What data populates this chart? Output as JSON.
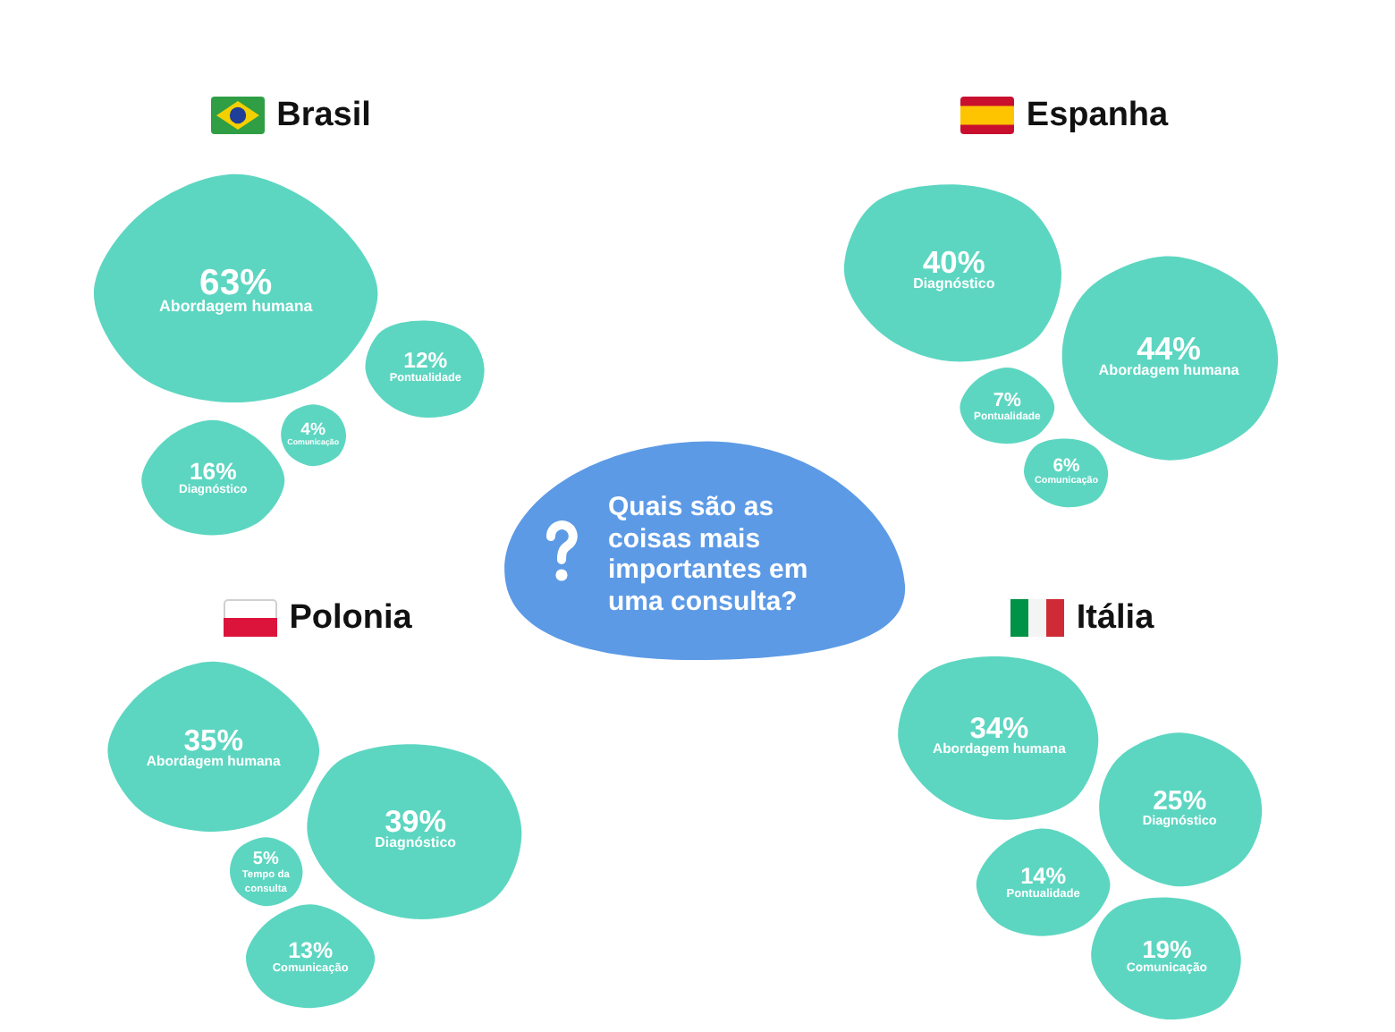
{
  "chart_data": [
    {
      "type": "other",
      "title": "Brasil",
      "categories": [
        "Abordagem humana",
        "Pontualidade",
        "Comunicação",
        "Diagnóstico"
      ],
      "values": [
        63,
        12,
        4,
        16
      ],
      "value_labels": [
        "63%",
        "12%",
        "4%",
        "16%"
      ],
      "color": "#5cd6c1"
    },
    {
      "type": "other",
      "title": "Espanha",
      "categories": [
        "Diagnóstico",
        "Abordagem humana",
        "Pontualidade",
        "Comunicação"
      ],
      "values": [
        40,
        44,
        7,
        6
      ],
      "value_labels": [
        "40%",
        "44%",
        "7%",
        "6%"
      ],
      "color": "#5cd6c1"
    },
    {
      "type": "other",
      "title": "Quais são as coisas mais importantes em uma consulta?"
    },
    {
      "type": "other",
      "title": "Polonia",
      "categories": [
        "Abordagem humana",
        "Diagnóstico",
        "Tempo da consulta",
        "Comunicação"
      ],
      "values": [
        35,
        39,
        5,
        13
      ],
      "value_labels": [
        "35%",
        "39%",
        "5%",
        "13%"
      ],
      "color": "#5cd6c1"
    },
    {
      "type": "other",
      "title": "Itália",
      "categories": [
        "Abordagem humana",
        "Diagnóstico",
        "Pontualidade",
        "Comunicação"
      ],
      "values": [
        34,
        25,
        14,
        19
      ],
      "value_labels": [
        "34%",
        "25%",
        "14%",
        "19%"
      ],
      "color": "#5cd6c1"
    }
  ]
}
